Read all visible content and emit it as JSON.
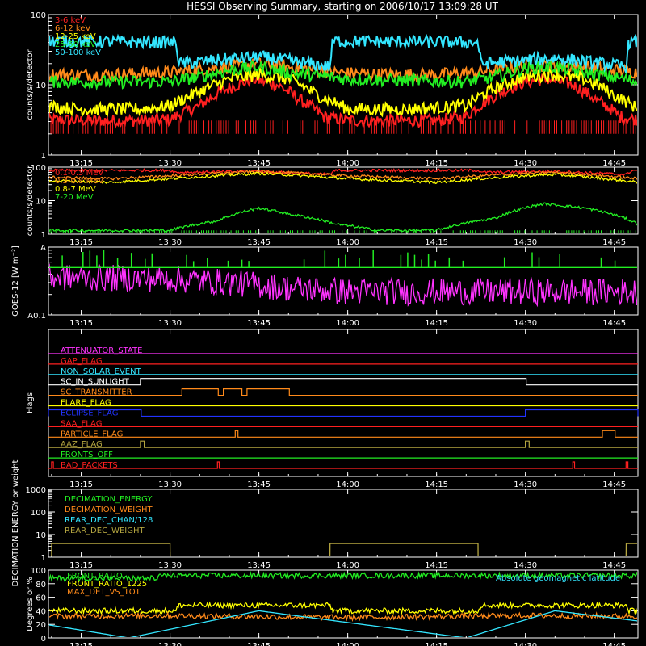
{
  "title": "HESSI Observing Summary, starting on 2006/10/17 13:09:28 UT",
  "colors": {
    "red": "#ff2020",
    "orange": "#ff8a1a",
    "yellow": "#ffff00",
    "green": "#22ee22",
    "cyan": "#33e6ff",
    "magenta": "#ff33ff",
    "blue": "#2233ff",
    "olive": "#b5a640",
    "white": "#ffffff"
  },
  "chart_data": [
    {
      "name": "lo-energy",
      "type": "line",
      "ylabel": "counts/s/detector",
      "yscale": "log",
      "ylim": [
        1,
        100
      ],
      "yticks": [
        "1",
        "10",
        "100"
      ],
      "xlim": [
        "13:09:28",
        "14:49"
      ],
      "xticks": [
        "13:15",
        "13:30",
        "13:45",
        "14:00",
        "14:15",
        "14:30",
        "14:45"
      ],
      "series": [
        {
          "name": "3-6 keV",
          "color": "red",
          "x": [
            "13:09",
            "13:15",
            "13:20",
            "13:25",
            "13:30",
            "13:35",
            "13:40",
            "13:44",
            "13:48",
            "13:52",
            "13:56",
            "14:00",
            "14:05",
            "14:10",
            "14:15",
            "14:20",
            "14:25",
            "14:30",
            "14:34",
            "14:38",
            "14:42",
            "14:46",
            "14:49"
          ],
          "y": [
            3.2,
            3.1,
            3.1,
            3.1,
            3.2,
            5,
            9,
            12,
            10,
            6,
            3.5,
            3.1,
            3.1,
            3.1,
            3.1,
            3.5,
            7,
            11,
            12,
            10,
            6,
            3.5,
            3.2
          ]
        },
        {
          "name": "6-12 keV",
          "color": "orange",
          "x": [
            "13:09",
            "13:20",
            "13:30",
            "13:40",
            "13:45",
            "13:50",
            "13:58",
            "14:05",
            "14:15",
            "14:22",
            "14:30",
            "14:40",
            "14:49"
          ],
          "y": [
            14,
            14,
            15,
            18,
            20,
            18,
            15,
            14,
            14,
            15,
            19,
            18,
            15
          ]
        },
        {
          "name": "12-25 keV",
          "color": "yellow",
          "x": [
            "13:09",
            "13:15",
            "13:25",
            "13:30",
            "13:35",
            "13:40",
            "13:45",
            "13:50",
            "13:55",
            "14:00",
            "14:10",
            "14:20",
            "14:25",
            "14:30",
            "14:35",
            "14:40",
            "14:45",
            "14:49"
          ],
          "y": [
            5,
            4.5,
            4.5,
            5,
            8,
            12,
            14,
            12,
            7,
            4.5,
            4.5,
            5,
            9,
            13,
            14,
            12,
            7,
            4.5
          ]
        },
        {
          "name": "25-50 keV",
          "color": "green",
          "x": [
            "13:09",
            "13:30",
            "13:35",
            "13:40",
            "13:45",
            "13:50",
            "14:00",
            "14:20",
            "14:25",
            "14:30",
            "14:35",
            "14:40",
            "14:49"
          ],
          "y": [
            11,
            11,
            13,
            16,
            18,
            15,
            12,
            11,
            13,
            17,
            18,
            15,
            11
          ]
        },
        {
          "name": "50-100 keV",
          "color": "cyan",
          "x": [
            "13:09",
            "13:31",
            "13:31:30",
            "13:45",
            "13:57",
            "13:57:30",
            "14:22",
            "14:22:30",
            "14:35",
            "14:47",
            "14:47:30",
            "14:49"
          ],
          "y": [
            42,
            40,
            20,
            25,
            18,
            42,
            40,
            20,
            24,
            18,
            40,
            40
          ]
        }
      ]
    },
    {
      "name": "hi-energy",
      "type": "line",
      "ylabel": "counts/s/detector",
      "yscale": "log",
      "ylim": [
        1,
        100
      ],
      "yticks": [
        "1",
        "10",
        "100"
      ],
      "xlim": [
        "13:09:28",
        "14:49"
      ],
      "xticks": [
        "13:15",
        "13:30",
        "13:45",
        "14:00",
        "14:15",
        "14:30",
        "14:45"
      ],
      "series": [
        {
          "name": "0.1-0.3 MeV",
          "color": "red",
          "x": [
            "13:09",
            "13:30",
            "13:31",
            "13:45",
            "13:57",
            "13:58",
            "14:22",
            "14:23",
            "14:35",
            "14:47",
            "14:48",
            "14:49"
          ],
          "y": [
            80,
            80,
            70,
            75,
            60,
            80,
            80,
            70,
            75,
            60,
            80,
            80
          ]
        },
        {
          "name": "0.3-0.8 MeV",
          "color": "orange",
          "x": [
            "13:09",
            "13:20",
            "13:30",
            "13:45",
            "14:00",
            "14:15",
            "14:30",
            "14:35",
            "14:49"
          ],
          "y": [
            50,
            45,
            55,
            75,
            55,
            45,
            65,
            70,
            45
          ]
        },
        {
          "name": "0.8-7 MeV",
          "color": "yellow",
          "x": [
            "13:09",
            "13:20",
            "13:30",
            "13:45",
            "14:00",
            "14:15",
            "14:30",
            "14:35",
            "14:49"
          ],
          "y": [
            40,
            35,
            45,
            65,
            45,
            35,
            55,
            60,
            35
          ]
        },
        {
          "name": "7-20 MeV",
          "color": "green",
          "x": [
            "13:09",
            "13:20",
            "13:30",
            "13:38",
            "13:45",
            "13:50",
            "13:58",
            "14:05",
            "14:15",
            "14:25",
            "14:33",
            "14:40",
            "14:49"
          ],
          "y": [
            1.3,
            1.3,
            1.3,
            2.5,
            6,
            4,
            2,
            1.3,
            1.3,
            3,
            8,
            6,
            2
          ]
        }
      ]
    },
    {
      "name": "goes",
      "type": "line",
      "ylabel": "GOES-12 [W m⁻²]",
      "yscale": "log",
      "ylim": [
        1e-08,
        1e-07
      ],
      "yticks": [
        "A0.1",
        "A"
      ],
      "xlim": [
        "13:09:28",
        "14:49"
      ],
      "xticks": [
        "13:15",
        "13:30",
        "13:45",
        "14:00",
        "14:15",
        "14:30",
        "14:45"
      ],
      "series": [
        {
          "name": "short",
          "color": "magenta",
          "x": [
            "13:09",
            "13:20",
            "13:30",
            "13:40",
            "13:50",
            "14:00",
            "14:15",
            "14:30",
            "14:49"
          ],
          "y": [
            3.6e-08,
            3.5e-08,
            3.4e-08,
            3e-08,
            2.5e-08,
            2.2e-08,
            2.2e-08,
            2.2e-08,
            2.2e-08
          ]
        },
        {
          "name": "long",
          "color": "green",
          "x": [
            "13:09",
            "14:49"
          ],
          "y": [
            5e-08,
            5e-08
          ]
        }
      ]
    },
    {
      "name": "flags",
      "type": "line",
      "ylabel": "Flags",
      "xlim": [
        "13:09:28",
        "14:49"
      ],
      "xticks": [
        "13:15",
        "13:30",
        "13:45",
        "14:00",
        "14:15",
        "14:30",
        "14:45"
      ],
      "flags": [
        {
          "name": "ATTENUATOR_STATE",
          "color": "magenta",
          "on": []
        },
        {
          "name": "GAP_FLAG",
          "color": "red",
          "on": []
        },
        {
          "name": "NON_SOLAR_EVENT",
          "color": "cyan",
          "on": []
        },
        {
          "name": "SC_IN_SUNLIGHT",
          "color": "white",
          "on": [
            [
              "13:25",
              "14:30"
            ]
          ]
        },
        {
          "name": "SC_TRANSMITTER",
          "color": "orange",
          "on": [
            [
              "13:32",
              "13:38"
            ],
            [
              "13:39",
              "13:42"
            ],
            [
              "13:43",
              "13:50"
            ]
          ]
        },
        {
          "name": "FLARE_FLAG",
          "color": "yellow",
          "on": []
        },
        {
          "name": "ECLIPSE_FLAG",
          "color": "blue",
          "on": [
            [
              "13:09",
              "13:25"
            ],
            [
              "14:30",
              "14:49"
            ]
          ]
        },
        {
          "name": "SAA_FLAG",
          "color": "red",
          "on": []
        },
        {
          "name": "PARTICLE_FLAG",
          "color": "orange",
          "on": [
            [
              "13:41",
              "13:41:20"
            ],
            [
              "14:43",
              "14:45"
            ]
          ]
        },
        {
          "name": "AAZ_FLAG",
          "color": "olive",
          "on": [
            [
              "13:25",
              "13:25:30"
            ],
            [
              "14:30",
              "14:30:30"
            ]
          ]
        },
        {
          "name": "FRONTS_OFF",
          "color": "green",
          "on": []
        },
        {
          "name": "BAD_PACKETS",
          "color": "red",
          "on": [
            [
              "13:10",
              "13:10:10"
            ],
            [
              "13:38",
              "13:38:10"
            ],
            [
              "14:38",
              "14:38:10"
            ],
            [
              "14:47",
              "14:47:10"
            ]
          ]
        }
      ]
    },
    {
      "name": "decimation",
      "type": "line",
      "ylabel": "DECIMATION ENERGY or weight",
      "yscale": "log",
      "ylim": [
        1,
        1000
      ],
      "yticks": [
        "1",
        "10",
        "100",
        "1000"
      ],
      "xlim": [
        "13:09:28",
        "14:49"
      ],
      "xticks": [
        "13:15",
        "13:30",
        "13:45",
        "14:00",
        "14:15",
        "14:30",
        "14:45"
      ],
      "series": [
        {
          "name": "DECIMATION_ENERGY",
          "color": "green",
          "x": [],
          "y": []
        },
        {
          "name": "DECIMATION_WEIGHT",
          "color": "orange",
          "x": [],
          "y": []
        },
        {
          "name": "REAR_DEC_CHAN/128",
          "color": "cyan",
          "x": [],
          "y": []
        },
        {
          "name": "REAR_DEC_WEIGHT",
          "color": "olive",
          "x": [
            "13:09",
            "13:10",
            "13:10:01",
            "13:30",
            "13:30:01",
            "13:57",
            "13:57:01",
            "14:22",
            "14:22:01",
            "14:47",
            "14:47:01",
            "14:49"
          ],
          "y": [
            1,
            1,
            4,
            4,
            1,
            1,
            4,
            4,
            1,
            1,
            4,
            4
          ]
        }
      ]
    },
    {
      "name": "geo",
      "type": "line",
      "ylabel": "Degrees or %",
      "ylim": [
        0,
        100
      ],
      "yticks": [
        "0",
        "20",
        "40",
        "60",
        "80",
        "100"
      ],
      "xlim": [
        "13:09:28",
        "14:49"
      ],
      "xticks": [
        "13:15",
        "13:30",
        "13:45",
        "14:00",
        "14:15",
        "14:30",
        "14:45"
      ],
      "series": [
        {
          "name": "FRONT_RATIO",
          "color": "green",
          "x": [
            "13:09",
            "13:30",
            "14:49"
          ],
          "y": [
            88,
            92,
            92
          ]
        },
        {
          "name": "FRONT_RATIO_1225",
          "color": "yellow",
          "x": [
            "13:09",
            "13:31",
            "13:31:30",
            "13:57",
            "13:57:30",
            "14:22",
            "14:22:30",
            "14:47",
            "14:47:30",
            "14:49"
          ],
          "y": [
            40,
            40,
            48,
            48,
            40,
            40,
            48,
            48,
            40,
            40
          ]
        },
        {
          "name": "MAX_DET_VS_TOT",
          "color": "orange",
          "x": [
            "13:09",
            "13:30",
            "14:00",
            "14:30",
            "14:49"
          ],
          "y": [
            32,
            33,
            30,
            33,
            32
          ]
        },
        {
          "name": "Absolute geomagnetic latitude",
          "color": "cyan",
          "x": [
            "13:09",
            "13:23",
            "13:45",
            "13:58",
            "14:20",
            "14:35",
            "14:49"
          ],
          "y": [
            20,
            0,
            40,
            25,
            0,
            40,
            25
          ]
        }
      ]
    }
  ]
}
